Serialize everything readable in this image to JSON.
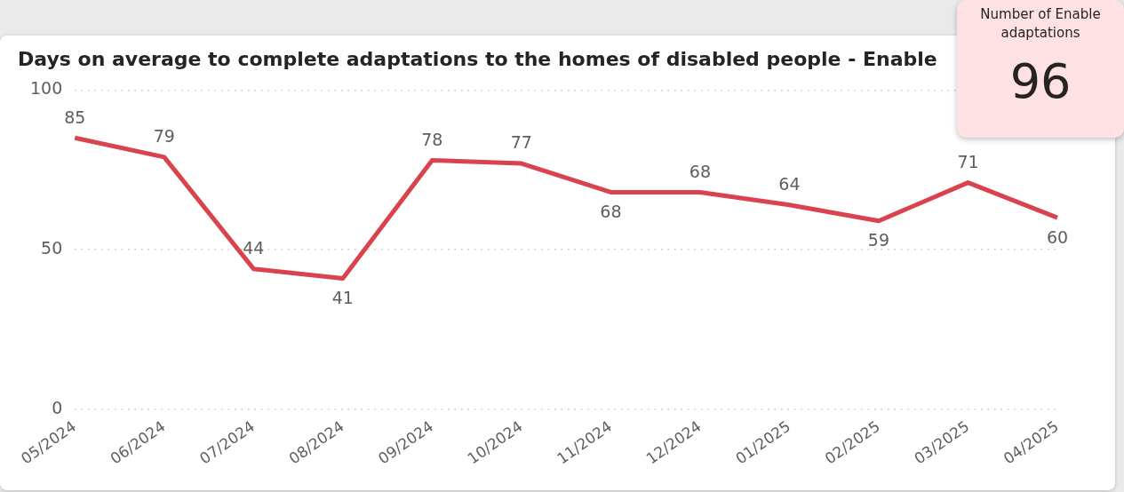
{
  "chart_data": [
    {
      "type": "line",
      "title": "Days on average to complete adaptations to the homes of disabled people - Enable",
      "categories": [
        "05/2024",
        "06/2024",
        "07/2024",
        "08/2024",
        "09/2024",
        "10/2024",
        "11/2024",
        "12/2024",
        "01/2025",
        "02/2025",
        "03/2025",
        "04/2025"
      ],
      "series": [
        {
          "color": "#d9434e",
          "values": [
            85,
            79,
            44,
            41,
            78,
            77,
            68,
            68,
            64,
            59,
            71,
            60
          ]
        }
      ],
      "ylim": [
        0,
        100
      ],
      "yticks": [
        0,
        50,
        100
      ],
      "grid": "y",
      "legend": false,
      "data_labels": true,
      "marker": "none",
      "line_style": "solid"
    },
    {
      "type": "other",
      "title": "Number of Enable adaptations",
      "annotations": [
        "96"
      ]
    }
  ]
}
